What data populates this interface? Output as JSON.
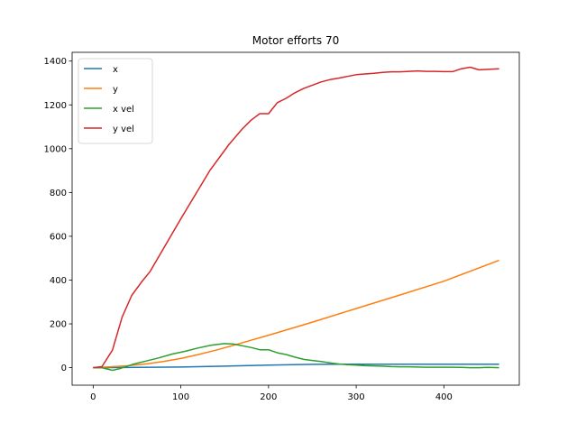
{
  "chart_data": {
    "type": "line",
    "title": "Motor efforts 70",
    "xlabel": "",
    "ylabel": "",
    "xlim": [
      -24,
      486
    ],
    "ylim": [
      -80,
      1440
    ],
    "xticks": [
      0,
      100,
      200,
      300,
      400
    ],
    "yticks": [
      0,
      200,
      400,
      600,
      800,
      1000,
      1200,
      1400
    ],
    "grid": false,
    "legend_position": "top-left",
    "series": [
      {
        "name": "x",
        "color": "#1f77b4",
        "points": [
          [
            0,
            0
          ],
          [
            50,
            1
          ],
          [
            100,
            3
          ],
          [
            150,
            7
          ],
          [
            200,
            12
          ],
          [
            250,
            15
          ],
          [
            300,
            16
          ],
          [
            350,
            16
          ],
          [
            400,
            16
          ],
          [
            463,
            16
          ]
        ]
      },
      {
        "name": "y",
        "color": "#ff7f0e",
        "points": [
          [
            0,
            0
          ],
          [
            20,
            4
          ],
          [
            40,
            9
          ],
          [
            60,
            17
          ],
          [
            80,
            28
          ],
          [
            100,
            42
          ],
          [
            120,
            60
          ],
          [
            140,
            80
          ],
          [
            160,
            102
          ],
          [
            180,
            125
          ],
          [
            200,
            148
          ],
          [
            250,
            208
          ],
          [
            300,
            270
          ],
          [
            350,
            332
          ],
          [
            400,
            395
          ],
          [
            463,
            490
          ]
        ]
      },
      {
        "name": "x vel",
        "color": "#2ca02c",
        "points": [
          [
            0,
            0
          ],
          [
            10,
            0
          ],
          [
            22,
            -12
          ],
          [
            30,
            -5
          ],
          [
            45,
            15
          ],
          [
            60,
            30
          ],
          [
            75,
            45
          ],
          [
            90,
            62
          ],
          [
            105,
            75
          ],
          [
            120,
            90
          ],
          [
            135,
            103
          ],
          [
            150,
            110
          ],
          [
            160,
            108
          ],
          [
            170,
            100
          ],
          [
            180,
            92
          ],
          [
            190,
            82
          ],
          [
            200,
            82
          ],
          [
            210,
            68
          ],
          [
            220,
            60
          ],
          [
            230,
            48
          ],
          [
            240,
            38
          ],
          [
            250,
            33
          ],
          [
            260,
            28
          ],
          [
            270,
            22
          ],
          [
            280,
            17
          ],
          [
            290,
            14
          ],
          [
            300,
            12
          ],
          [
            310,
            9
          ],
          [
            320,
            8
          ],
          [
            330,
            7
          ],
          [
            340,
            5
          ],
          [
            350,
            4
          ],
          [
            360,
            4
          ],
          [
            370,
            3
          ],
          [
            380,
            2
          ],
          [
            390,
            2
          ],
          [
            400,
            2
          ],
          [
            410,
            2
          ],
          [
            420,
            1
          ],
          [
            430,
            0
          ],
          [
            440,
            0
          ],
          [
            450,
            1
          ],
          [
            463,
            0
          ]
        ]
      },
      {
        "name": "y vel",
        "color": "#d62728",
        "points": [
          [
            0,
            0
          ],
          [
            10,
            5
          ],
          [
            22,
            80
          ],
          [
            33,
            230
          ],
          [
            44,
            330
          ],
          [
            55,
            390
          ],
          [
            65,
            440
          ],
          [
            100,
            680
          ],
          [
            133,
            900
          ],
          [
            155,
            1020
          ],
          [
            170,
            1090
          ],
          [
            180,
            1130
          ],
          [
            190,
            1160
          ],
          [
            200,
            1160
          ],
          [
            210,
            1210
          ],
          [
            220,
            1230
          ],
          [
            230,
            1255
          ],
          [
            240,
            1275
          ],
          [
            250,
            1290
          ],
          [
            260,
            1305
          ],
          [
            270,
            1315
          ],
          [
            280,
            1322
          ],
          [
            290,
            1330
          ],
          [
            300,
            1338
          ],
          [
            310,
            1341
          ],
          [
            320,
            1344
          ],
          [
            330,
            1348
          ],
          [
            340,
            1351
          ],
          [
            350,
            1351
          ],
          [
            360,
            1353
          ],
          [
            370,
            1355
          ],
          [
            380,
            1353
          ],
          [
            390,
            1353
          ],
          [
            400,
            1352
          ],
          [
            410,
            1352
          ],
          [
            420,
            1365
          ],
          [
            430,
            1372
          ],
          [
            440,
            1360
          ],
          [
            450,
            1362
          ],
          [
            463,
            1365
          ]
        ]
      }
    ]
  }
}
